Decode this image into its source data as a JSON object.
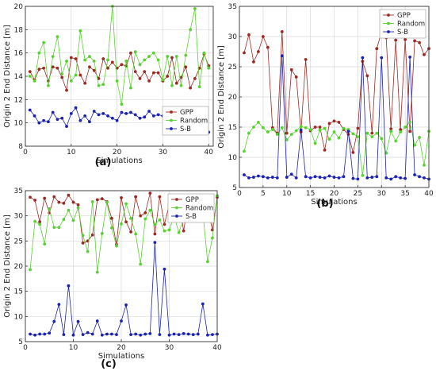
{
  "chart_data": [
    {
      "panel_label": "(a)",
      "type": "line",
      "title": "",
      "xlabel": "Simulations",
      "ylabel": "Origin 2 End Distance [m]",
      "xlim": [
        0,
        41
      ],
      "ylim": [
        8,
        20
      ],
      "xticks": [
        0,
        10,
        20,
        30,
        40
      ],
      "yticks": [
        8,
        10,
        12,
        14,
        16,
        18,
        20
      ],
      "grid": true,
      "legend_position": "lower-right",
      "x": [
        1,
        2,
        3,
        4,
        5,
        6,
        7,
        8,
        9,
        10,
        11,
        12,
        13,
        14,
        15,
        16,
        17,
        18,
        19,
        20,
        21,
        22,
        23,
        24,
        25,
        26,
        27,
        28,
        29,
        30,
        31,
        32,
        33,
        34,
        35,
        36,
        37,
        38,
        39,
        40
      ],
      "series": [
        {
          "name": "GPP",
          "color": "#9a2a22",
          "values": [
            14.4,
            13.7,
            14.6,
            14.7,
            13.6,
            14.8,
            14.7,
            13.9,
            12.8,
            15.6,
            15.5,
            14.1,
            13.4,
            14.8,
            14.5,
            13.8,
            15.5,
            14.7,
            15.2,
            14.7,
            15.0,
            14.9,
            16.0,
            14.4,
            13.8,
            14.4,
            13.6,
            14.3,
            14.3,
            13.6,
            14.0,
            15.6,
            13.4,
            13.9,
            14.8,
            13.0,
            13.8,
            14.7,
            15.9,
            14.9
          ]
        },
        {
          "name": "Random",
          "color": "#5ad132",
          "values": [
            14.0,
            13.6,
            16.0,
            16.9,
            13.2,
            15.7,
            17.4,
            14.2,
            15.3,
            13.6,
            14.1,
            17.9,
            15.4,
            15.7,
            15.3,
            13.2,
            13.3,
            15.4,
            20.0,
            13.6,
            11.6,
            15.3,
            13.0,
            16.1,
            15.0,
            15.4,
            15.7,
            16.0,
            15.4,
            13.7,
            15.7,
            13.2,
            15.7,
            13.2,
            15.8,
            18.0,
            19.8,
            13.1,
            16.0,
            14.7
          ]
        },
        {
          "name": "S-B",
          "color": "#1c22b0",
          "values": [
            11.1,
            10.6,
            10.0,
            10.2,
            10.1,
            10.9,
            10.3,
            10.4,
            9.7,
            10.8,
            11.3,
            10.2,
            10.6,
            10.1,
            11.0,
            10.7,
            10.8,
            10.6,
            10.4,
            10.2,
            10.9,
            10.8,
            10.9,
            10.7,
            10.4,
            10.5,
            11.0,
            10.6,
            10.7,
            10.6,
            11.2,
            10.7,
            10.4,
            10.6,
            10.8,
            10.6,
            10.5,
            10.7,
            10.7,
            9.2
          ]
        }
      ]
    },
    {
      "panel_label": "(b)",
      "type": "line",
      "title": "",
      "xlabel": "Simulations",
      "ylabel": "Origin 2 End Distance [m]",
      "xlim": [
        0,
        40
      ],
      "ylim": [
        5,
        35
      ],
      "xticks": [
        0,
        5,
        10,
        15,
        20,
        25,
        30,
        35,
        40
      ],
      "yticks": [
        5,
        10,
        15,
        20,
        25,
        30,
        35
      ],
      "grid": true,
      "legend_position": "top-right",
      "x": [
        1,
        2,
        3,
        4,
        5,
        6,
        7,
        8,
        9,
        10,
        11,
        12,
        13,
        14,
        15,
        16,
        17,
        18,
        19,
        20,
        21,
        22,
        23,
        24,
        25,
        26,
        27,
        28,
        29,
        30,
        31,
        32,
        33,
        34,
        35,
        36,
        37,
        38,
        39,
        40
      ],
      "series": [
        {
          "name": "GPP",
          "color": "#9a2a22",
          "values": [
            27.3,
            30.3,
            25.8,
            27.5,
            30.0,
            28.2,
            14.9,
            14.0,
            30.8,
            14.0,
            24.5,
            23.3,
            14.2,
            26.2,
            14.4,
            15.0,
            15.0,
            11.2,
            15.6,
            16.0,
            15.8,
            14.6,
            13.8,
            10.8,
            14.8,
            25.9,
            23.5,
            14.0,
            28.0,
            30.8,
            29.8,
            14.7,
            29.4,
            14.6,
            29.5,
            14.3,
            29.3,
            29.0,
            27.0,
            28.0
          ]
        },
        {
          "name": "Random",
          "color": "#5ad132",
          "values": [
            11.0,
            14.0,
            15.0,
            15.8,
            14.9,
            14.2,
            14.6,
            13.8,
            14.9,
            12.9,
            13.8,
            14.4,
            15.1,
            14.9,
            14.6,
            12.3,
            14.5,
            14.8,
            13.0,
            14.2,
            13.2,
            14.8,
            14.6,
            13.9,
            13.4,
            7.0,
            14.0,
            13.4,
            14.0,
            13.1,
            10.7,
            14.3,
            12.7,
            14.2,
            15.0,
            15.8,
            12.0,
            13.3,
            8.7,
            14.3
          ]
        },
        {
          "name": "S-B",
          "color": "#1c22b0",
          "values": [
            7.1,
            6.6,
            6.7,
            6.9,
            6.8,
            6.6,
            6.7,
            6.6,
            26.8,
            6.7,
            7.2,
            6.6,
            14.5,
            6.8,
            6.6,
            6.8,
            6.7,
            6.6,
            6.9,
            6.7,
            6.6,
            6.8,
            14.3,
            6.5,
            6.4,
            26.5,
            6.6,
            6.7,
            6.8,
            26.5,
            6.6,
            6.4,
            6.8,
            6.6,
            6.5,
            26.6,
            7.1,
            6.8,
            6.6,
            6.4
          ]
        }
      ]
    },
    {
      "panel_label": "(c)",
      "type": "line",
      "title": "",
      "xlabel": "Simulations",
      "ylabel": "Origin 2 End Distance [m]",
      "xlim": [
        0,
        40
      ],
      "ylim": [
        5,
        35
      ],
      "xticks": [
        0,
        10,
        20,
        30,
        40
      ],
      "yticks": [
        5,
        10,
        15,
        20,
        25,
        30,
        35
      ],
      "grid": true,
      "legend_position": "top-right",
      "x": [
        1,
        2,
        3,
        4,
        5,
        6,
        7,
        8,
        9,
        10,
        11,
        12,
        13,
        14,
        15,
        16,
        17,
        18,
        19,
        20,
        21,
        22,
        23,
        24,
        25,
        26,
        27,
        28,
        29,
        30,
        31,
        32,
        33,
        34,
        35,
        36,
        37,
        38,
        39,
        40
      ],
      "series": [
        {
          "name": "GPP",
          "color": "#9a2a22",
          "values": [
            33.7,
            33.1,
            28.8,
            33.5,
            30.6,
            33.8,
            32.7,
            32.5,
            34.1,
            32.7,
            32.2,
            24.6,
            25.0,
            26.2,
            33.2,
            33.4,
            32.8,
            29.5,
            24.3,
            33.6,
            28.8,
            26.8,
            33.8,
            30.0,
            30.6,
            34.5,
            26.4,
            33.8,
            28.3,
            32.2,
            33.3,
            33.4,
            27.0,
            32.7,
            30.4,
            29.5,
            31.2,
            31.8,
            27.2,
            33.7
          ]
        },
        {
          "name": "Random",
          "color": "#5ad132",
          "values": [
            19.3,
            28.9,
            28.3,
            24.4,
            31.4,
            27.7,
            27.7,
            29.3,
            31.1,
            29.1,
            31.6,
            26.1,
            22.9,
            32.8,
            18.8,
            26.5,
            32.7,
            27.6,
            24.0,
            28.4,
            32.4,
            29.5,
            26.4,
            20.4,
            29.4,
            31.1,
            28.3,
            29.2,
            27.0,
            27.2,
            30.0,
            26.7,
            29.4,
            29.8,
            29.5,
            29.4,
            30.6,
            20.9,
            25.6,
            34.0
          ]
        },
        {
          "name": "S-B",
          "color": "#1c22b0",
          "values": [
            6.5,
            6.3,
            6.5,
            6.5,
            6.7,
            9.0,
            12.4,
            6.4,
            16.1,
            6.3,
            9.0,
            6.4,
            6.8,
            6.5,
            9.1,
            6.3,
            6.5,
            6.5,
            6.4,
            9.1,
            12.3,
            6.4,
            6.5,
            6.3,
            6.5,
            6.6,
            24.7,
            6.4,
            19.4,
            6.3,
            6.5,
            6.4,
            6.6,
            6.5,
            6.4,
            6.5,
            12.5,
            6.3,
            6.4,
            6.5
          ]
        }
      ]
    }
  ]
}
